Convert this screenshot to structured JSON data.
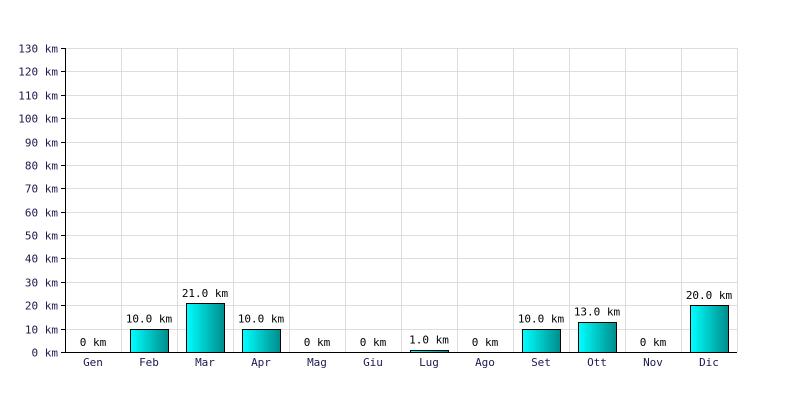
{
  "chart_data": {
    "type": "bar",
    "categories": [
      "Gen",
      "Feb",
      "Mar",
      "Apr",
      "Mag",
      "Giu",
      "Lug",
      "Ago",
      "Set",
      "Ott",
      "Nov",
      "Dic"
    ],
    "values": [
      0,
      10,
      21,
      10,
      0,
      0,
      1,
      0,
      10,
      13,
      0,
      20
    ],
    "data_labels": [
      "0 km",
      "10.0 km",
      "21.0 km",
      "10.0 km",
      "0 km",
      "0 km",
      "1.0 km",
      "0 km",
      "10.0 km",
      "13.0 km",
      "0 km",
      "20.0 km"
    ],
    "y_ticks": [
      "0 km",
      "10 km",
      "20 km",
      "30 km",
      "40 km",
      "50 km",
      "60 km",
      "70 km",
      "80 km",
      "90 km",
      "100 km",
      "110 km",
      "120 km",
      "130 km"
    ],
    "ylim": [
      0,
      130
    ],
    "grid": true,
    "bar_color_light": "#00ffff",
    "bar_color_dark": "#008c8c"
  }
}
